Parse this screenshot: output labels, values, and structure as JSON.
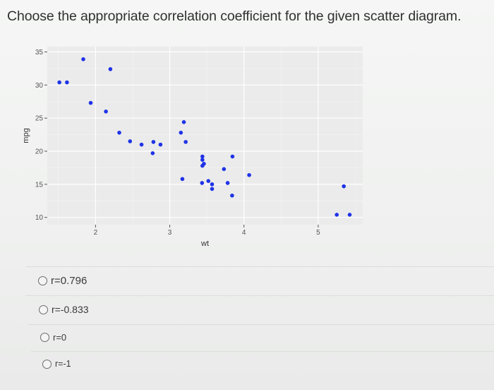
{
  "question": "Choose the appropriate correlation coefficient for the given scatter diagram.",
  "options": [
    "r=0.796",
    "r=-0.833",
    "r=0",
    "r=-1"
  ],
  "colors": {
    "panel": "#ebebeb",
    "grid_major": "#ffffff",
    "grid_minor": "#f5f5f5",
    "points": "#1f33e6",
    "background": "#f2f3f2"
  },
  "chart_data": {
    "type": "scatter",
    "xlabel": "wt",
    "ylabel": "mpg",
    "xlim": [
      1.35,
      5.6
    ],
    "ylim": [
      8.9,
      35.8
    ],
    "x_ticks": [
      "2",
      "3",
      "4",
      "5"
    ],
    "y_ticks": [
      "10",
      "15",
      "20",
      "25",
      "30",
      "35"
    ],
    "grid": true,
    "legend": "none",
    "points": [
      {
        "x": 2.62,
        "y": 21.0
      },
      {
        "x": 2.875,
        "y": 21.0
      },
      {
        "x": 2.32,
        "y": 22.8
      },
      {
        "x": 3.215,
        "y": 21.4
      },
      {
        "x": 3.44,
        "y": 18.7
      },
      {
        "x": 3.46,
        "y": 18.1
      },
      {
        "x": 3.57,
        "y": 14.3
      },
      {
        "x": 3.19,
        "y": 24.4
      },
      {
        "x": 3.15,
        "y": 22.8
      },
      {
        "x": 3.44,
        "y": 19.2
      },
      {
        "x": 3.44,
        "y": 17.8
      },
      {
        "x": 4.07,
        "y": 16.4
      },
      {
        "x": 3.73,
        "y": 17.3
      },
      {
        "x": 3.78,
        "y": 15.2
      },
      {
        "x": 5.25,
        "y": 10.4
      },
      {
        "x": 5.424,
        "y": 10.4
      },
      {
        "x": 5.345,
        "y": 14.7
      },
      {
        "x": 2.2,
        "y": 32.4
      },
      {
        "x": 1.615,
        "y": 30.4
      },
      {
        "x": 1.835,
        "y": 33.9
      },
      {
        "x": 2.465,
        "y": 21.5
      },
      {
        "x": 3.52,
        "y": 15.5
      },
      {
        "x": 3.435,
        "y": 15.2
      },
      {
        "x": 3.84,
        "y": 13.3
      },
      {
        "x": 3.845,
        "y": 19.2
      },
      {
        "x": 1.935,
        "y": 27.3
      },
      {
        "x": 2.14,
        "y": 26.0
      },
      {
        "x": 1.513,
        "y": 30.4
      },
      {
        "x": 3.17,
        "y": 15.8
      },
      {
        "x": 2.77,
        "y": 19.7
      },
      {
        "x": 3.57,
        "y": 15.0
      },
      {
        "x": 2.78,
        "y": 21.4
      }
    ]
  }
}
